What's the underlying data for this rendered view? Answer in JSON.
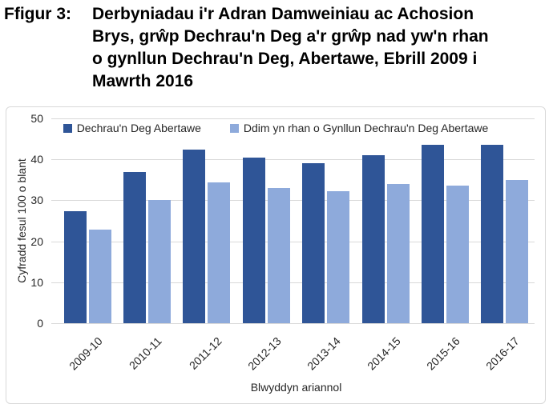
{
  "title": {
    "prefix": "Ffigur 3:",
    "lines": [
      "Derbyniadau i'r Adran Damweiniau ac Achosion",
      "Brys, grŵp Dechrau'n Deg a'r grŵp nad yw'n rhan",
      "o gynllun Dechrau'n Deg, Abertawe, Ebrill 2009 i",
      "Mawrth 2016"
    ]
  },
  "chart_data": {
    "type": "bar",
    "categories": [
      "2009-10",
      "2010-11",
      "2011-12",
      "2012-13",
      "2013-14",
      "2014-15",
      "2015-16",
      "2016-17"
    ],
    "series": [
      {
        "name": "Dechrau'n Deg Abertawe",
        "color": "#2F5597",
        "values": [
          27.3,
          37.0,
          42.4,
          40.5,
          39.0,
          41.1,
          43.6,
          43.6
        ]
      },
      {
        "name": "Ddim yn rhan o Gynllun Dechrau'n Deg Abertawe",
        "color": "#8EAADB",
        "values": [
          22.9,
          30.0,
          34.4,
          33.0,
          32.3,
          33.9,
          33.6,
          34.9
        ]
      }
    ],
    "xlabel": "Blwyddyn ariannol",
    "ylabel": "Cyfradd fesul 100 o blant",
    "ylim": [
      0,
      50
    ],
    "ytick_step": 10,
    "grid": "horizontal",
    "legend_position": "top"
  },
  "colors": {
    "gridline": "#D9D9D9",
    "chart_border": "#D9D9D9",
    "axis_text": "#262626",
    "title_text": "#000000",
    "background": "#FFFFFF"
  }
}
